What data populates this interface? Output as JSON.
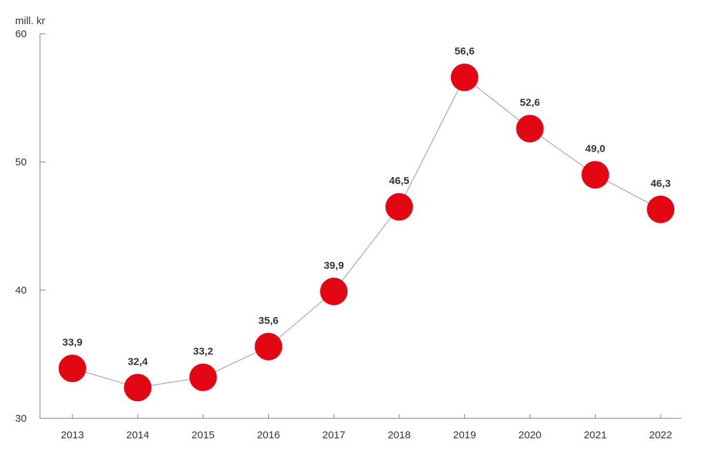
{
  "chart_data": {
    "type": "line",
    "ylabel": "mill. kr",
    "ylim": [
      30,
      60
    ],
    "yticks": [
      30,
      40,
      50,
      60
    ],
    "categories": [
      "2013",
      "2014",
      "2015",
      "2016",
      "2017",
      "2018",
      "2019",
      "2020",
      "2021",
      "2022"
    ],
    "values": [
      33.9,
      32.4,
      33.2,
      35.6,
      39.9,
      46.5,
      56.6,
      52.6,
      49.0,
      46.3
    ],
    "value_labels": [
      "33,9",
      "32,4",
      "33,2",
      "35,6",
      "39,9",
      "46,5",
      "56,6",
      "52,6",
      "49,0",
      "46,3"
    ],
    "grid": false,
    "marker_color": "#e30613",
    "line_color": "#aaaaaa",
    "axis_color": "#777777"
  }
}
